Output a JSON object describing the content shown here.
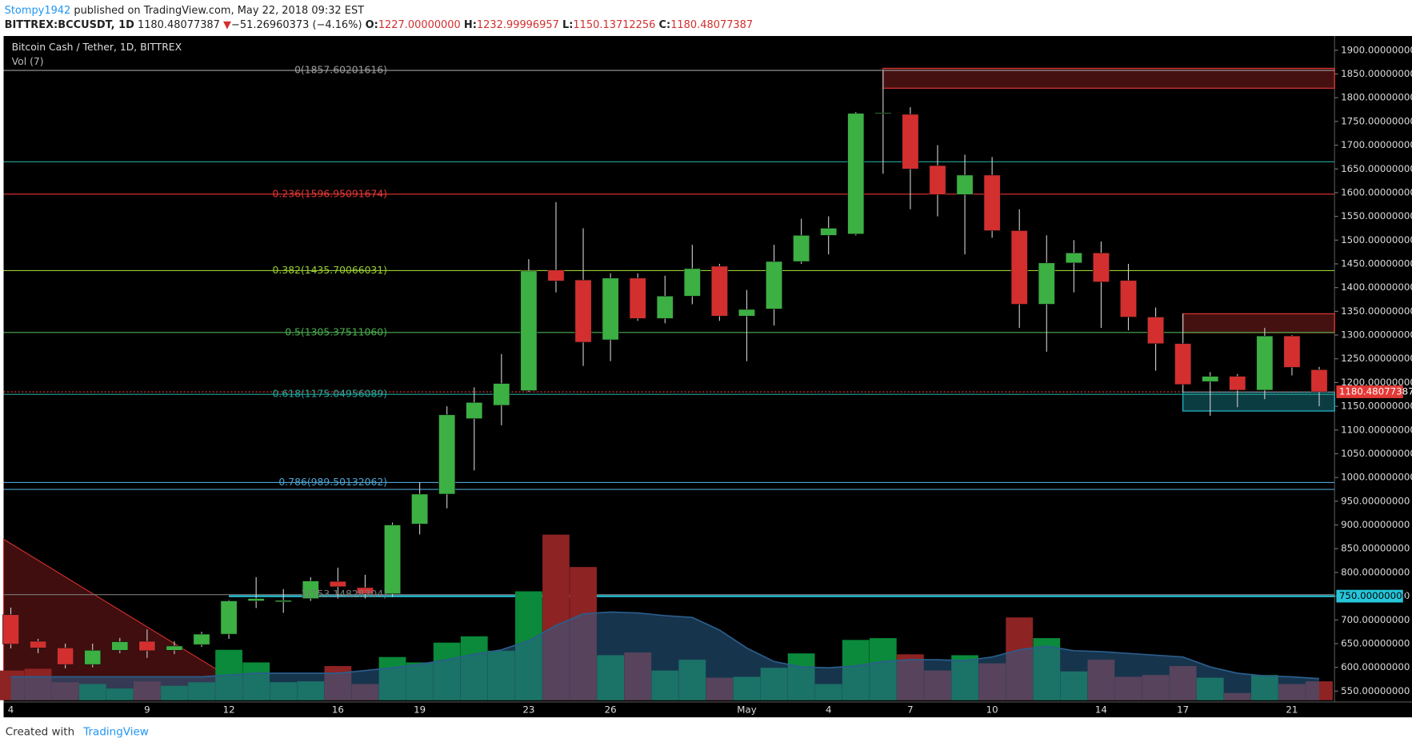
{
  "header": {
    "author": "Stompy1942",
    "published": " published on TradingView.com, May 22, 2018 09:32 EST",
    "symbol": "BITTREX:BCCUSDT, 1D",
    "last": "1180.48077387",
    "arrow": "▼",
    "change": "−51.26960373 (−4.16%)",
    "o_key": "O:",
    "o": "1227.00000000",
    "h_key": "H:",
    "h": "1232.99996957",
    "l_key": "L:",
    "l": "1150.13712256",
    "c_key": "C:",
    "c": "1180.48077387"
  },
  "footer": {
    "created": "Created with",
    "brand": "TradingView"
  },
  "chart_data": {
    "type": "candlestick",
    "title": "Bitcoin Cash / Tether, 1D, BITTREX",
    "volume_title": "Vol (7)",
    "categories": [
      "4",
      null,
      null,
      null,
      null,
      "9",
      null,
      null,
      "12",
      null,
      null,
      null,
      "16",
      null,
      null,
      "19",
      null,
      null,
      null,
      "23",
      null,
      null,
      "26",
      null,
      null,
      null,
      null,
      "May",
      null,
      null,
      "4",
      null,
      null,
      "7",
      null,
      null,
      "10",
      null,
      null,
      null,
      "14",
      null,
      null,
      "17",
      null,
      null,
      null,
      "21",
      null
    ],
    "open": [
      711,
      655,
      641,
      606,
      636,
      655,
      636,
      648,
      670,
      740,
      738,
      745,
      781,
      768,
      755,
      902,
      965,
      1124,
      1152,
      1183,
      1437,
      1416,
      1290,
      1420,
      1335,
      1382,
      1445,
      1340,
      1355,
      1455,
      1510,
      1513,
      1767,
      1765,
      1657,
      1596,
      1637,
      1520,
      1365,
      1452,
      1473,
      1415,
      1338,
      1282,
      1202,
      1213,
      1184,
      1298,
      1227
    ],
    "high": [
      726,
      660,
      650,
      650,
      662,
      680,
      655,
      675,
      742,
      790,
      765,
      790,
      810,
      795,
      905,
      990,
      1150,
      1190,
      1260,
      1460,
      1580,
      1525,
      1430,
      1430,
      1425,
      1490,
      1450,
      1395,
      1490,
      1545,
      1550,
      1770,
      1857,
      1780,
      1700,
      1680,
      1675,
      1565,
      1510,
      1500,
      1497,
      1450,
      1358,
      1345,
      1222,
      1218,
      1315,
      1300,
      1232.99996957
    ],
    "low": [
      640,
      630,
      598,
      600,
      630,
      620,
      628,
      643,
      660,
      725,
      715,
      740,
      745,
      745,
      748,
      880,
      935,
      1015,
      1110,
      1180,
      1390,
      1235,
      1245,
      1330,
      1325,
      1365,
      1330,
      1245,
      1320,
      1450,
      1470,
      1510,
      1640,
      1565,
      1550,
      1470,
      1505,
      1315,
      1265,
      1390,
      1315,
      1310,
      1225,
      1180,
      1130,
      1148,
      1165,
      1215,
      1150.13712256
    ],
    "close": [
      649,
      641,
      606,
      636,
      654,
      635,
      645,
      670,
      740,
      745,
      741,
      782,
      770,
      755,
      900,
      965,
      1132,
      1158,
      1198,
      1435,
      1414,
      1285,
      1420,
      1335,
      1382,
      1440,
      1340,
      1354,
      1455,
      1510,
      1525,
      1767,
      1768,
      1650,
      1596,
      1637,
      1520,
      1365,
      1452,
      1473,
      1412,
      1338,
      1282,
      1196,
      1213,
      1184,
      1298,
      1232,
      1180.48077387
    ],
    "volume": [
      33,
      35,
      20,
      18,
      13,
      21,
      16,
      20,
      56,
      42,
      20,
      21,
      38,
      18,
      48,
      42,
      64,
      71,
      55,
      121,
      184,
      148,
      50,
      53,
      33,
      45,
      25,
      26,
      36,
      52,
      18,
      67,
      69,
      51,
      33,
      50,
      41,
      92,
      69,
      32,
      45,
      26,
      28,
      38,
      25,
      8,
      28,
      18,
      21
    ],
    "volume_ma": [
      26,
      26,
      26,
      26,
      26,
      26,
      26,
      26,
      28,
      30,
      30,
      30,
      30,
      33,
      36,
      40,
      45,
      51,
      56,
      66,
      83,
      96,
      98,
      97,
      94,
      92,
      78,
      58,
      43,
      37,
      36,
      38,
      43,
      45,
      45,
      44,
      48,
      56,
      60,
      55,
      54,
      52,
      50,
      48,
      37,
      30,
      27,
      26,
      24
    ],
    "up_color": "#3cb043",
    "down_color": "#d32f2f",
    "vol_up_color": "#0a8a3a",
    "vol_down_color": "#8e2323",
    "ma_color": "#2a5e8c",
    "ylim": [
      527,
      1930
    ],
    "yticks": [
      {
        "value": 550,
        "label": "550.00000000"
      },
      {
        "value": 600,
        "label": "600.00000000"
      },
      {
        "value": 650,
        "label": "650.00000000"
      },
      {
        "value": 700,
        "label": "700.00000000"
      },
      {
        "value": 750,
        "label": "750.00000000"
      },
      {
        "value": 800,
        "label": "800.00000000"
      },
      {
        "value": 850,
        "label": "850.00000000"
      },
      {
        "value": 900,
        "label": "900.00000000"
      },
      {
        "value": 950,
        "label": "950.00000000"
      },
      {
        "value": 1000,
        "label": "1000.00000000"
      },
      {
        "value": 1050,
        "label": "1050.00000000"
      },
      {
        "value": 1100,
        "label": "1100.00000000"
      },
      {
        "value": 1150,
        "label": "1150.00000000"
      },
      {
        "value": 1200,
        "label": "1200.00000000"
      },
      {
        "value": 1250,
        "label": "1250.00000000"
      },
      {
        "value": 1300,
        "label": "1300.00000000"
      },
      {
        "value": 1350,
        "label": "1350.00000000"
      },
      {
        "value": 1400,
        "label": "1400.00000000"
      },
      {
        "value": 1450,
        "label": "1450.00000000"
      },
      {
        "value": 1500,
        "label": "1500.00000000"
      },
      {
        "value": 1550,
        "label": "1550.00000000"
      },
      {
        "value": 1600,
        "label": "1600.00000000"
      },
      {
        "value": 1650,
        "label": "1650.00000000"
      },
      {
        "value": 1700,
        "label": "1700.00000000"
      },
      {
        "value": 1750,
        "label": "1750.00000000"
      },
      {
        "value": 1800,
        "label": "1800.00000000"
      },
      {
        "value": 1850,
        "label": "1850.00000000"
      },
      {
        "value": 1900,
        "label": "1900.00000000"
      }
    ],
    "fib_levels": [
      {
        "value": 1857.60201616,
        "label": "0(1857.60201616)",
        "color": "#9e9e9e"
      },
      {
        "value": 1596.95091674,
        "label": "0.236(1596.95091674)",
        "color": "#e53935"
      },
      {
        "value": 1435.70066031,
        "label": "0.382(1435.70066031)",
        "color": "#9acd32"
      },
      {
        "value": 1305.3751106,
        "label": "0.5(1305.37511060)",
        "color": "#4caf50"
      },
      {
        "value": 1175.04956089,
        "label": "0.618(1175.04956089)",
        "color": "#26a69a"
      },
      {
        "value": 989.50132062,
        "label": "0.786(989.50132062)",
        "color": "#4fa3d1"
      },
      {
        "value": 753.14828304,
        "label": "1(753.14828304)",
        "color": "#7a7a7a"
      }
    ],
    "hlines": [
      {
        "value": 1665,
        "color": "#26a69a",
        "from": 0
      },
      {
        "value": 975,
        "color": "#4fa3d1",
        "from": 0
      },
      {
        "value": 750,
        "color": "#26c6da",
        "from": 8,
        "label": "750.00000000"
      }
    ],
    "zones": [
      {
        "from": 32,
        "top": 1862,
        "bottom": 1820,
        "color": "#e53935"
      },
      {
        "from": 43,
        "top": 1345,
        "bottom": 1305,
        "color": "#e53935"
      },
      {
        "from": 43,
        "top": 1180,
        "bottom": 1140,
        "color": "#26c6da"
      }
    ],
    "wedge": {
      "from": 0,
      "to": 9,
      "top": 870,
      "bottom": 545,
      "color": "#d32f2f"
    }
  }
}
